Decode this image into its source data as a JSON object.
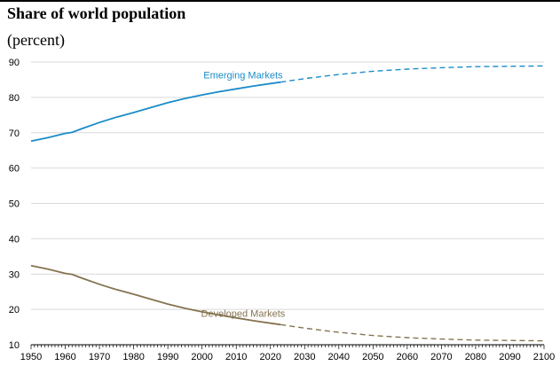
{
  "header": {
    "title": "Share of world population",
    "subtitle": "(percent)"
  },
  "chart_data": {
    "type": "line",
    "title": "Share of world population",
    "subtitle": "(percent)",
    "xlabel": "",
    "ylabel": "",
    "xlim": [
      1950,
      2100
    ],
    "ylim": [
      10,
      90
    ],
    "x_ticks": [
      1950,
      1960,
      1970,
      1980,
      1990,
      2000,
      2010,
      2020,
      2030,
      2040,
      2050,
      2060,
      2070,
      2080,
      2090,
      2100
    ],
    "y_ticks": [
      10,
      20,
      30,
      40,
      50,
      60,
      70,
      80,
      90
    ],
    "grid": "horizontal",
    "legend": "none (direct labels on lines)",
    "projection_start": 2023,
    "projection_style": "dashed",
    "series": [
      {
        "name": "Emerging Markets",
        "color": "#1a8cc8",
        "x": [
          1950,
          1955,
          1960,
          1962,
          1965,
          1970,
          1975,
          1980,
          1985,
          1990,
          1995,
          2000,
          2005,
          2010,
          2015,
          2020,
          2023,
          2030,
          2040,
          2050,
          2060,
          2070,
          2080,
          2090,
          2100
        ],
        "values": [
          67.6,
          68.6,
          69.8,
          70.1,
          71.2,
          72.9,
          74.4,
          75.7,
          77.1,
          78.5,
          79.7,
          80.7,
          81.6,
          82.4,
          83.2,
          83.9,
          84.3,
          85.3,
          86.5,
          87.4,
          88.0,
          88.4,
          88.7,
          88.8,
          88.9
        ]
      },
      {
        "name": "Developed Markets",
        "color": "#857350",
        "x": [
          1950,
          1955,
          1960,
          1962,
          1965,
          1970,
          1975,
          1980,
          1985,
          1990,
          1995,
          2000,
          2005,
          2010,
          2015,
          2020,
          2023,
          2030,
          2040,
          2050,
          2060,
          2070,
          2080,
          2090,
          2100
        ],
        "values": [
          32.4,
          31.4,
          30.2,
          29.9,
          28.8,
          27.1,
          25.6,
          24.3,
          22.9,
          21.5,
          20.3,
          19.3,
          18.4,
          17.6,
          16.8,
          16.1,
          15.7,
          14.7,
          13.5,
          12.6,
          12.0,
          11.6,
          11.3,
          11.2,
          11.1
        ]
      }
    ]
  }
}
